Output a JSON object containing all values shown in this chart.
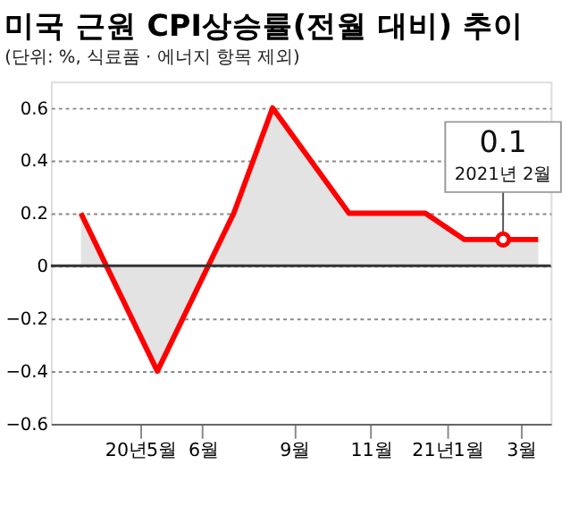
{
  "chart_data": {
    "type": "area",
    "title": "미국 근원 CPI상승률(전월 대비) 추이",
    "subtitle": "(단위: %, 식료품 · 에너지 항목 제외)",
    "x": [
      "2020-03-15",
      "2020-05-15",
      "2020-07-15",
      "2020-08-15",
      "2020-10-15",
      "2020-12-15",
      "2021-01-15",
      "2021-02-15",
      "2021-03-15"
    ],
    "series": [
      {
        "color": "#ff0000",
        "values": [
          0.2,
          -0.4,
          0.2,
          0.6,
          0.2,
          0.2,
          0.1,
          0.1,
          0.1
        ]
      }
    ],
    "xlim": [
      "2020-02-20",
      "2021-03-25"
    ],
    "xticks": [
      {
        "value": "2020-05-01",
        "label": "20년5월"
      },
      {
        "value": "2020-06-20",
        "label": "6월"
      },
      {
        "value": "2020-09-01",
        "label": "9월"
      },
      {
        "value": "2020-11-01",
        "label": "11월"
      },
      {
        "value": "2021-01-01",
        "label": "21년1월"
      },
      {
        "value": "2021-03-01",
        "label": "3월"
      }
    ],
    "ylim": [
      -0.6,
      0.7
    ],
    "yticks": [
      -0.6,
      -0.4,
      -0.2,
      0,
      0.2,
      0.4,
      0.6
    ],
    "ref_lines": [
      {
        "axis": "y",
        "value": 0,
        "color": "#333333"
      }
    ],
    "annotations": [
      {
        "text": "0.1",
        "x": "2021-02-15",
        "y": 0.1
      },
      {
        "text": "2021년 2월",
        "x": "2021-02-15",
        "y": 0.1
      }
    ],
    "grid": "y",
    "marker": "none",
    "line_style": "solid"
  }
}
